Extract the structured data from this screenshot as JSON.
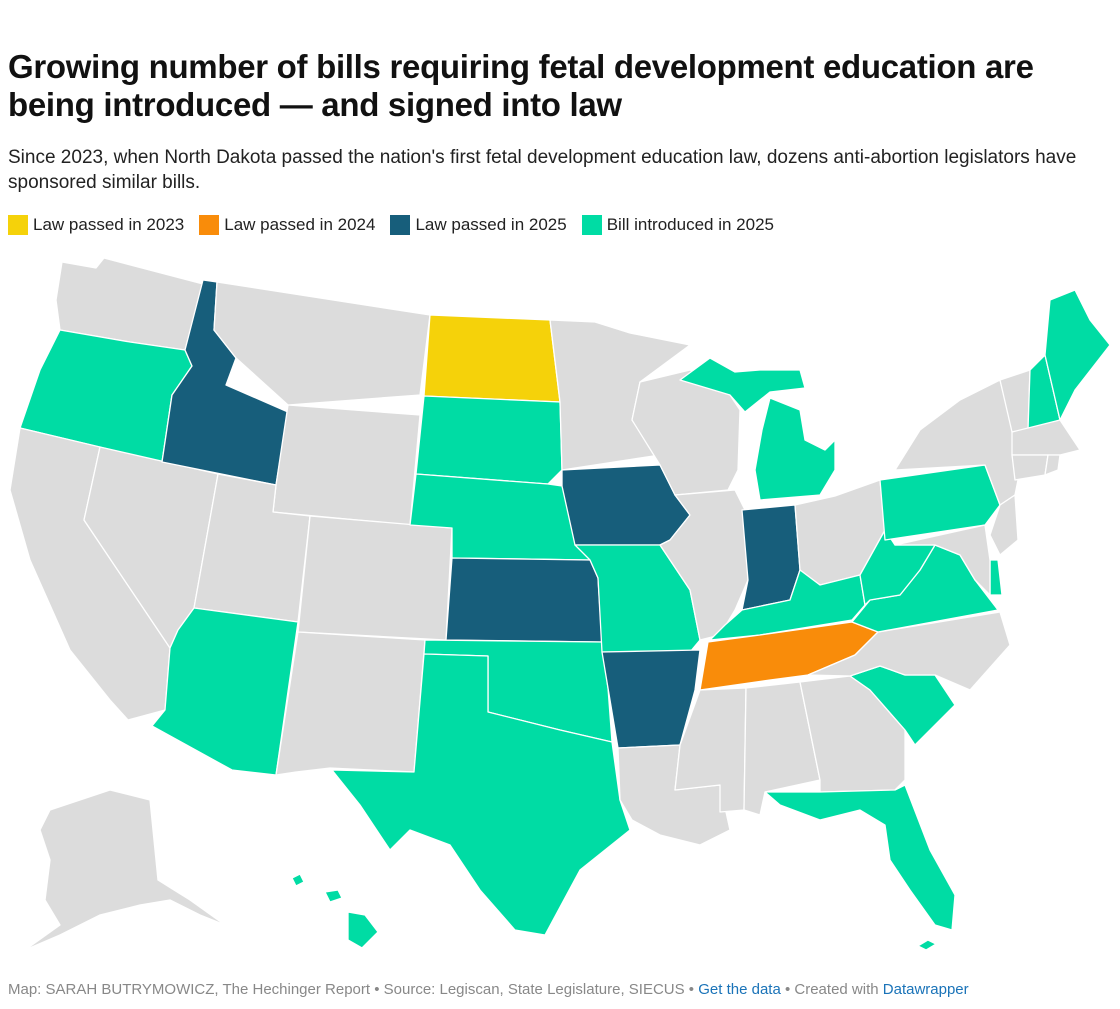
{
  "header": {
    "title": "Growing number of bills requiring fetal development education are being introduced — and signed into law",
    "subtitle": "Since 2023, when North Dakota passed the nation's first fetal development education law, dozens anti-abortion legislators have sponsored similar bills."
  },
  "legend": [
    {
      "key": "law2023",
      "label": "Law passed in 2023",
      "color": "#f5d20a"
    },
    {
      "key": "law2024",
      "label": "Law passed in 2024",
      "color": "#f98c0a"
    },
    {
      "key": "law2025",
      "label": "Law passed in 2025",
      "color": "#175e7b"
    },
    {
      "key": "bill2025",
      "label": "Bill introduced in 2025",
      "color": "#00dca4"
    }
  ],
  "colors": {
    "none": "#dcdcdc",
    "law2023": "#f5d20a",
    "law2024": "#f98c0a",
    "law2025": "#175e7b",
    "bill2025": "#00dca4",
    "link": "#1a73b8"
  },
  "states": [
    {
      "name": "Washington",
      "status": "none"
    },
    {
      "name": "Oregon",
      "status": "bill2025"
    },
    {
      "name": "California",
      "status": "none"
    },
    {
      "name": "Nevada",
      "status": "none"
    },
    {
      "name": "Idaho",
      "status": "law2025"
    },
    {
      "name": "Montana",
      "status": "none"
    },
    {
      "name": "Wyoming",
      "status": "none"
    },
    {
      "name": "Utah",
      "status": "none"
    },
    {
      "name": "Arizona",
      "status": "bill2025"
    },
    {
      "name": "Colorado",
      "status": "none"
    },
    {
      "name": "New Mexico",
      "status": "none"
    },
    {
      "name": "North Dakota",
      "status": "law2023"
    },
    {
      "name": "South Dakota",
      "status": "bill2025"
    },
    {
      "name": "Nebraska",
      "status": "bill2025"
    },
    {
      "name": "Kansas",
      "status": "law2025"
    },
    {
      "name": "Oklahoma",
      "status": "bill2025"
    },
    {
      "name": "Texas",
      "status": "bill2025"
    },
    {
      "name": "Minnesota",
      "status": "none"
    },
    {
      "name": "Iowa",
      "status": "law2025"
    },
    {
      "name": "Missouri",
      "status": "bill2025"
    },
    {
      "name": "Arkansas",
      "status": "law2025"
    },
    {
      "name": "Louisiana",
      "status": "none"
    },
    {
      "name": "Wisconsin",
      "status": "none"
    },
    {
      "name": "Illinois",
      "status": "none"
    },
    {
      "name": "Michigan",
      "status": "bill2025"
    },
    {
      "name": "Indiana",
      "status": "law2025"
    },
    {
      "name": "Ohio",
      "status": "none"
    },
    {
      "name": "Kentucky",
      "status": "bill2025"
    },
    {
      "name": "Tennessee",
      "status": "law2024"
    },
    {
      "name": "Mississippi",
      "status": "none"
    },
    {
      "name": "Alabama",
      "status": "none"
    },
    {
      "name": "Georgia",
      "status": "none"
    },
    {
      "name": "Florida",
      "status": "bill2025"
    },
    {
      "name": "South Carolina",
      "status": "bill2025"
    },
    {
      "name": "North Carolina",
      "status": "none"
    },
    {
      "name": "Virginia",
      "status": "bill2025"
    },
    {
      "name": "West Virginia",
      "status": "bill2025"
    },
    {
      "name": "Pennsylvania",
      "status": "bill2025"
    },
    {
      "name": "New York",
      "status": "none"
    },
    {
      "name": "New Jersey",
      "status": "none"
    },
    {
      "name": "Delaware",
      "status": "bill2025"
    },
    {
      "name": "Maryland",
      "status": "none"
    },
    {
      "name": "Vermont",
      "status": "none"
    },
    {
      "name": "New Hampshire",
      "status": "bill2025"
    },
    {
      "name": "Maine",
      "status": "bill2025"
    },
    {
      "name": "Massachusetts",
      "status": "none"
    },
    {
      "name": "Connecticut",
      "status": "none"
    },
    {
      "name": "Rhode Island",
      "status": "none"
    },
    {
      "name": "Alaska",
      "status": "none"
    },
    {
      "name": "Hawaii",
      "status": "bill2025"
    }
  ],
  "footer": {
    "credit": "Map: SARAH BUTRYMOWICZ, The Hechinger Report • Source: Legiscan, State Legislature, SIECUS • ",
    "data_link": "Get the data",
    "created_text": " • Created with ",
    "tool_link": "Datawrapper"
  }
}
